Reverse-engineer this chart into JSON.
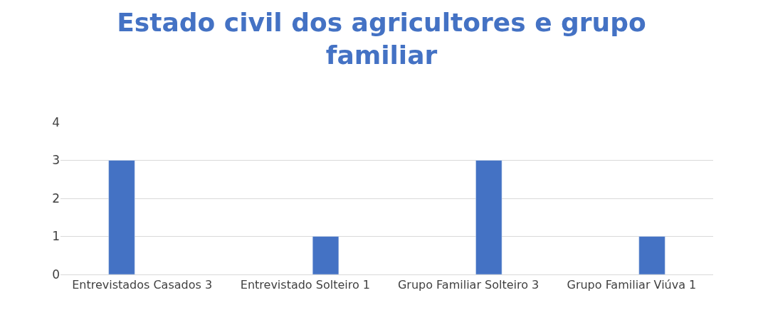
{
  "chart_data": {
    "type": "bar",
    "title": "Estado civil dos agricultores e grupo familiar",
    "categories": [
      "Entrevistados Casados 3",
      "Entrevistado Solteiro 1",
      "Grupo Familiar Solteiro 3",
      "Grupo Familiar Viúva 1"
    ],
    "series": [
      {
        "color": "#4472c4",
        "values": [
          3,
          null,
          null,
          null
        ]
      },
      {
        "color": "#4472c4",
        "values": [
          null,
          1,
          3,
          1
        ]
      }
    ],
    "ylim": [
      0,
      4
    ],
    "yticks": [
      0,
      1,
      2,
      3,
      4
    ],
    "grid": "y",
    "legend": false
  }
}
